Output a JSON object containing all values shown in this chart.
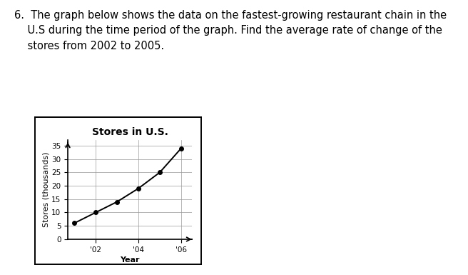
{
  "title": "Stores in U.S.",
  "xlabel": "Year",
  "ylabel": "Stores (thousands)",
  "x_values": [
    2001,
    2002,
    2003,
    2004,
    2005,
    2006
  ],
  "y_values": [
    6,
    10,
    14,
    19,
    25,
    34
  ],
  "x_tick_labels": [
    "'02",
    "'04",
    "'06"
  ],
  "x_tick_positions": [
    2002,
    2004,
    2006
  ],
  "y_ticks": [
    0,
    5,
    10,
    15,
    20,
    25,
    30,
    35
  ],
  "ylim": [
    0,
    37
  ],
  "xlim": [
    2000.7,
    2006.5
  ],
  "line_color": "#000000",
  "marker": "o",
  "marker_size": 4,
  "marker_color": "#000000",
  "background_color": "#ffffff",
  "title_fontsize": 10,
  "label_fontsize": 8,
  "tick_fontsize": 7.5,
  "question_text_line1": "6.  The graph below shows the data on the fastest-growing restaurant chain in the",
  "question_text_line2": "    U.S during the time period of the graph. Find the average rate of change of the",
  "question_text_line3": "    stores from 2002 to 2005.",
  "text_fontsize": 10.5,
  "grid_color": "#999999",
  "grid_lw": 0.5,
  "border_lw": 1.2
}
